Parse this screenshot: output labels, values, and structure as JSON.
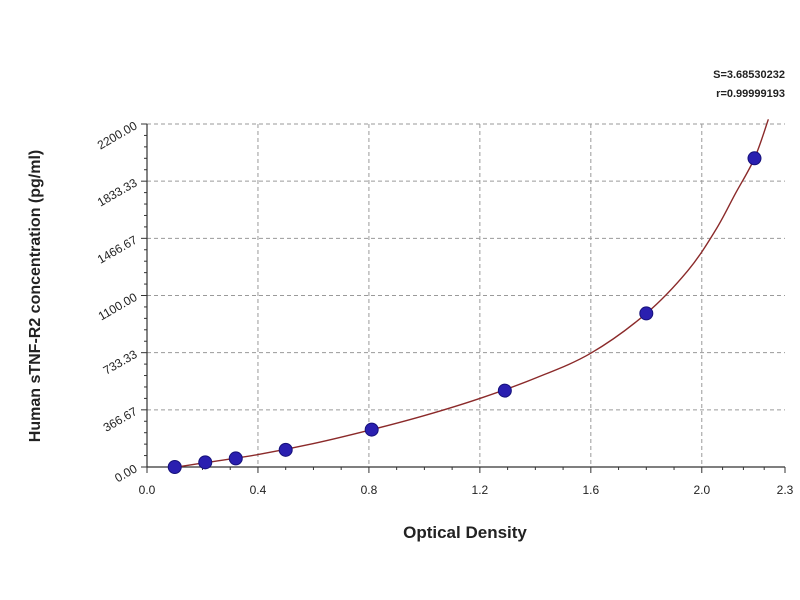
{
  "chart_data": {
    "type": "scatter",
    "title": "",
    "xlabel": "Optical Density",
    "ylabel": "Human sTNF-R2 concentration (pg/ml)",
    "xlim": [
      0.0,
      2.3
    ],
    "ylim": [
      0.0,
      2200.0
    ],
    "x_ticks": [
      "0.0",
      "0.4",
      "0.8",
      "1.2",
      "1.6",
      "2.0",
      "2.3"
    ],
    "x_tick_values": [
      0.0,
      0.4,
      0.8,
      1.2,
      1.6,
      2.0,
      2.3
    ],
    "y_ticks": [
      "0.00",
      "366.67",
      "733.33",
      "1100.00",
      "1466.67",
      "1833.33",
      "2200.00"
    ],
    "y_tick_values": [
      0.0,
      366.67,
      733.33,
      1100.0,
      1466.67,
      1833.33,
      2200.0
    ],
    "grid": true,
    "stats": {
      "s": "S=3.68530232",
      "r": "r=0.99999193"
    },
    "series": [
      {
        "points": [
          {
            "x": 0.1,
            "y": 0
          },
          {
            "x": 0.21,
            "y": 30
          },
          {
            "x": 0.32,
            "y": 55
          },
          {
            "x": 0.5,
            "y": 110
          },
          {
            "x": 0.81,
            "y": 240
          },
          {
            "x": 1.29,
            "y": 490
          },
          {
            "x": 1.8,
            "y": 985
          },
          {
            "x": 2.19,
            "y": 1980
          }
        ],
        "color": "#2a1fb0"
      }
    ],
    "fit_curve": {
      "color": "#8b2a2a",
      "points": [
        {
          "x": 0.09,
          "y": -5
        },
        {
          "x": 0.2,
          "y": 25
        },
        {
          "x": 0.4,
          "y": 80
        },
        {
          "x": 0.6,
          "y": 150
        },
        {
          "x": 0.8,
          "y": 235
        },
        {
          "x": 1.0,
          "y": 330
        },
        {
          "x": 1.2,
          "y": 440
        },
        {
          "x": 1.4,
          "y": 570
        },
        {
          "x": 1.6,
          "y": 730
        },
        {
          "x": 1.8,
          "y": 985
        },
        {
          "x": 1.95,
          "y": 1260
        },
        {
          "x": 2.05,
          "y": 1520
        },
        {
          "x": 2.12,
          "y": 1750
        },
        {
          "x": 2.19,
          "y": 1980
        },
        {
          "x": 2.24,
          "y": 2230
        }
      ]
    }
  },
  "colors": {
    "axis": "#333333",
    "grid": "#9a9a9a",
    "marker_fill": "#2a1fb0",
    "marker_stroke": "#15107a",
    "curve": "#8b2a2a"
  }
}
